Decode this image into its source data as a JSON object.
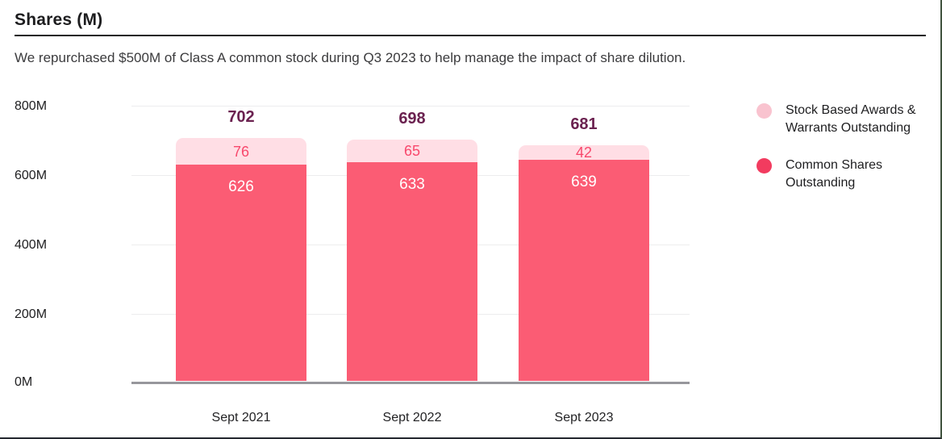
{
  "page": {
    "title": "Shares (M)",
    "subtitle": "We repurchased $500M of Class A common stock during Q3 2023 to help manage the impact of share dilution."
  },
  "chart_data": {
    "type": "bar",
    "stacked": true,
    "title": "Shares (M)",
    "categories": [
      "Sept 2021",
      "Sept 2022",
      "Sept 2023"
    ],
    "series": [
      {
        "name": "Common Shares Outstanding",
        "color": "#fb5c74",
        "values": [
          626,
          633,
          639
        ]
      },
      {
        "name": "Stock Based Awards & Warrants Outstanding",
        "color": "#ffdee5",
        "values": [
          76,
          65,
          42
        ]
      }
    ],
    "totals": [
      702,
      698,
      681
    ],
    "ylim": [
      0,
      800
    ],
    "yticks": [
      "0M",
      "200M",
      "400M",
      "600M",
      "800M"
    ],
    "grid": true,
    "legend_position": "right"
  },
  "legend": {
    "items": [
      {
        "line1": "Stock Based Awards &",
        "line2": "Warrants Outstanding",
        "color": "#f9c3cf"
      },
      {
        "line1": "Common Shares",
        "line2": "Outstanding",
        "color": "#f23b5f"
      }
    ]
  },
  "colors": {
    "total_label": "#6b2250",
    "segment_label_on_light": "#f8486c",
    "segment_label_on_dark": "#ffffff",
    "axis_line": "#97979c",
    "gridline": "#ededee"
  }
}
